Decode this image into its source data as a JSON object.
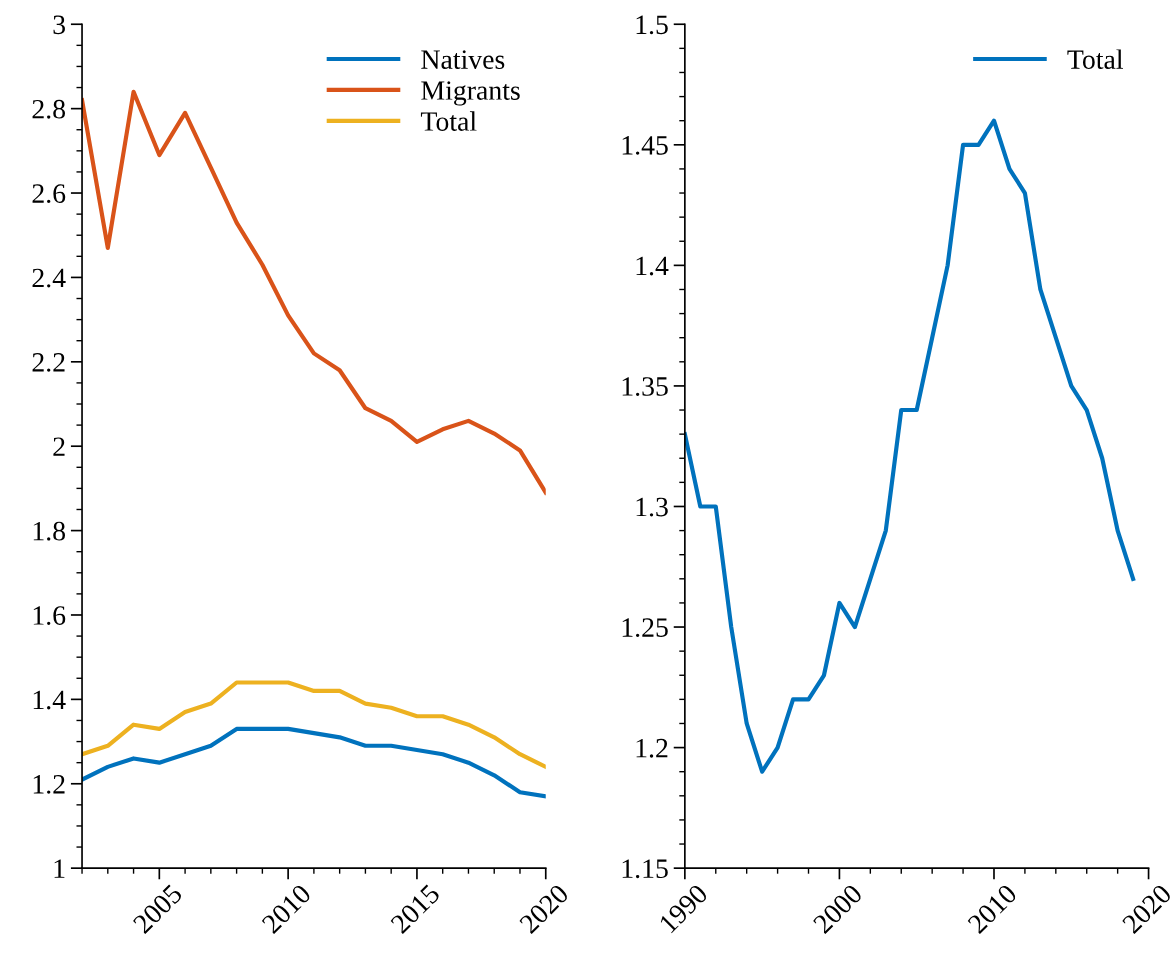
{
  "chart_data": [
    {
      "type": "line",
      "x": [
        2002,
        2003,
        2004,
        2005,
        2006,
        2007,
        2008,
        2009,
        2010,
        2011,
        2012,
        2013,
        2014,
        2015,
        2016,
        2017,
        2018,
        2019,
        2020
      ],
      "series": [
        {
          "name": "Natives",
          "color": "#0072bd",
          "values": [
            1.21,
            1.24,
            1.26,
            1.25,
            1.27,
            1.29,
            1.33,
            1.33,
            1.33,
            1.32,
            1.31,
            1.29,
            1.29,
            1.28,
            1.27,
            1.25,
            1.22,
            1.18,
            1.17
          ]
        },
        {
          "name": "Migrants",
          "color": "#d95319",
          "values": [
            2.82,
            2.47,
            2.84,
            2.69,
            2.79,
            2.66,
            2.53,
            2.43,
            2.31,
            2.22,
            2.18,
            2.09,
            2.06,
            2.01,
            2.04,
            2.06,
            2.03,
            1.99,
            1.89
          ]
        },
        {
          "name": "Total",
          "color": "#edb120",
          "values": [
            1.27,
            1.29,
            1.34,
            1.33,
            1.37,
            1.39,
            1.44,
            1.44,
            1.44,
            1.42,
            1.42,
            1.39,
            1.38,
            1.36,
            1.36,
            1.34,
            1.31,
            1.27,
            1.24
          ]
        }
      ],
      "xlim": [
        2002,
        2020
      ],
      "xticks": [
        2005,
        2010,
        2015,
        2020
      ],
      "ylim": [
        1,
        3
      ],
      "yticks": [
        1,
        1.2,
        1.4,
        1.6,
        1.8,
        2,
        2.2,
        2.4,
        2.6,
        2.8,
        3
      ],
      "legend": "top right",
      "grid": false,
      "marker": "none",
      "line_style": "solid"
    },
    {
      "type": "line",
      "x": [
        1990,
        1991,
        1992,
        1993,
        1994,
        1995,
        1996,
        1997,
        1998,
        1999,
        2000,
        2001,
        2002,
        2003,
        2004,
        2005,
        2006,
        2007,
        2008,
        2009,
        2010,
        2011,
        2012,
        2013,
        2014,
        2015,
        2016,
        2017,
        2018,
        2019
      ],
      "series": [
        {
          "name": "Total",
          "color": "#0072bd",
          "values": [
            1.33,
            1.3,
            1.3,
            1.25,
            1.21,
            1.19,
            1.2,
            1.22,
            1.22,
            1.23,
            1.26,
            1.25,
            1.27,
            1.29,
            1.34,
            1.34,
            1.37,
            1.4,
            1.45,
            1.45,
            1.46,
            1.44,
            1.43,
            1.39,
            1.37,
            1.35,
            1.34,
            1.32,
            1.29,
            1.27
          ]
        }
      ],
      "xlim": [
        1990,
        2020
      ],
      "xticks": [
        1990,
        2000,
        2010,
        2020
      ],
      "ylim": [
        1.15,
        1.5
      ],
      "yticks": [
        1.15,
        1.2,
        1.25,
        1.3,
        1.35,
        1.4,
        1.45,
        1.5
      ],
      "legend": "top right",
      "grid": false,
      "marker": "none",
      "line_style": "solid"
    }
  ]
}
